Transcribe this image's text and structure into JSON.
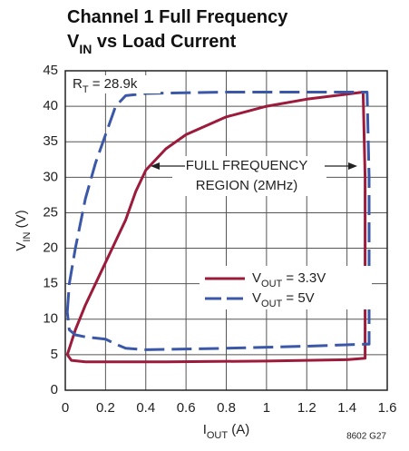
{
  "chart_data": {
    "type": "line",
    "title_lines": [
      [
        "Channel 1 Full Frequency"
      ],
      [
        "V",
        "IN",
        " vs Load Current"
      ]
    ],
    "xlabel": [
      "I",
      "OUT",
      " (A)"
    ],
    "ylabel": [
      "V",
      "IN",
      " (V)"
    ],
    "annotation_rt": [
      "R",
      "T",
      " = 28.9k"
    ],
    "annotation_region": [
      "FULL FREQUENCY",
      "REGION (2MHz)"
    ],
    "footnote": "8602 G27",
    "xlim": [
      0,
      1.6
    ],
    "xticks": [
      0,
      0.2,
      0.4,
      0.6,
      0.8,
      1,
      1.2,
      1.4,
      1.6
    ],
    "ylim": [
      0,
      45
    ],
    "yticks": [
      0,
      5,
      10,
      15,
      20,
      25,
      30,
      35,
      40,
      45
    ],
    "grid": true,
    "series": [
      {
        "name": [
          "V",
          "OUT",
          " = 3.3V"
        ],
        "color": "#9c1b3b",
        "linestyle": "solid",
        "x": [
          0.01,
          0.05,
          0.1,
          0.2,
          0.3,
          0.35,
          0.4,
          0.5,
          0.6,
          0.8,
          1.0,
          1.2,
          1.4,
          1.48,
          1.49,
          1.49,
          1.4,
          1.0,
          0.5,
          0.1,
          0.03,
          0.01
        ],
        "values": [
          5,
          8.5,
          12,
          18,
          24,
          28,
          31,
          34,
          36,
          38.5,
          40,
          41,
          41.7,
          42,
          30,
          4.5,
          4.3,
          4.1,
          4.0,
          4.0,
          4.2,
          5
        ]
      },
      {
        "name": [
          "V",
          "OUT",
          " = 5V"
        ],
        "color": "#3a57a8",
        "linestyle": "dashed",
        "x": [
          0.01,
          0.02,
          0.05,
          0.1,
          0.15,
          0.2,
          0.25,
          0.3,
          0.4,
          0.8,
          1.2,
          1.5,
          1.51,
          1.51,
          1.5,
          1.2,
          0.8,
          0.4,
          0.3,
          0.25,
          0.2,
          0.1,
          0.05,
          0.02,
          0.01
        ],
        "values": [
          11,
          15,
          20,
          27,
          32,
          36,
          40,
          41.5,
          41.8,
          42,
          42,
          42,
          30,
          6.5,
          6.5,
          6.2,
          5.9,
          5.7,
          5.9,
          6.5,
          7.2,
          7.5,
          7.8,
          8.5,
          11
        ]
      }
    ]
  }
}
